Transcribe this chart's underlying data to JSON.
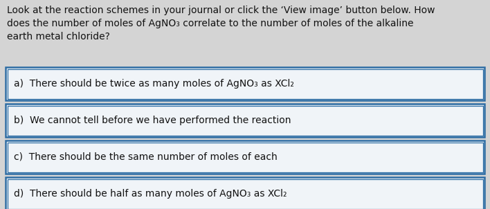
{
  "background_color": "#d4d4d4",
  "question_text": "Look at the reaction schemes in your journal or click the ‘View image’ button below. How\ndoes the number of moles of AgNO₃ correlate to the number of moles of the alkaline\nearth metal chloride?",
  "options": [
    "a)  There should be twice as many moles of AgNO₃ as XCl₂",
    "b)  We cannot tell before we have performed the reaction",
    "c)  There should be the same number of moles of each",
    "d)  There should be half as many moles of AgNO₃ as XCl₂"
  ],
  "box_border_color": "#2e6da4",
  "box_face_color": "#f0f4f8",
  "text_color": "#111111",
  "question_fontsize": 10.0,
  "option_fontsize": 10.0,
  "fig_width": 7.08,
  "fig_height": 3.02,
  "dpi": 100
}
